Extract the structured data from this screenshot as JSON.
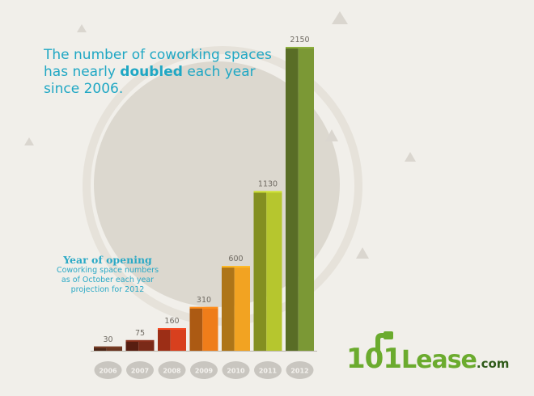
{
  "headline": {
    "line1": "The number of coworking spaces",
    "line2a": "has nearly ",
    "line2b": "doubled",
    "line2c": " each year",
    "line3": "since 2006."
  },
  "legend": {
    "title": "Year of opening",
    "line1": "Coworking space numbers",
    "line2": "as of October each year",
    "line3": "projection for 2012"
  },
  "logo": {
    "part1": "101",
    "part2": "Lease",
    "part3": ".com"
  },
  "colors": {
    "accent": "#1fa7c4",
    "bar_2006": "#6a3520",
    "bar_2007": "#7a2a18",
    "bar_2008": "#d8401e",
    "bar_2009": "#ef7d1a",
    "bar_2010": "#f2a322",
    "bar_2011": "#b6c62e",
    "bar_2012": "#7b9835",
    "badge": "#c9c6c0",
    "logo_green": "#6bab2e"
  },
  "chart_data": {
    "type": "bar",
    "title": "The number of coworking spaces has nearly doubled each year since 2006.",
    "categories": [
      "2006",
      "2007",
      "2008",
      "2009",
      "2010",
      "2011",
      "2012"
    ],
    "values": [
      30,
      75,
      160,
      310,
      600,
      1130,
      2150
    ],
    "data_labels": [
      "30",
      "75",
      "160",
      "310",
      "600",
      "1130",
      "2150"
    ],
    "legend": "Year of opening",
    "grid": false
  }
}
